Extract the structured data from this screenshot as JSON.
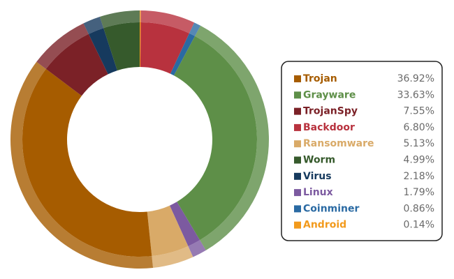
{
  "chart_data": {
    "type": "donut",
    "categories": [
      "Android",
      "Backdoor",
      "Coinminer",
      "Grayware",
      "Linux",
      "Ransomware",
      "Trojan",
      "TrojanSpy",
      "Virus",
      "Worm"
    ],
    "values": [
      0.14,
      6.8,
      0.86,
      33.63,
      1.79,
      5.13,
      36.92,
      7.55,
      2.18,
      4.99
    ],
    "value_labels": [
      "0.14%",
      "6.80%",
      "0.86%",
      "33.63%",
      "1.79%",
      "5.13%",
      "36.92%",
      "7.55%",
      "2.18%",
      "4.99%"
    ],
    "colors": [
      "#f29a1c",
      "#b8323e",
      "#2a6aa3",
      "#5e8f48",
      "#7c5aa0",
      "#d9aa68",
      "#a65c00",
      "#7b2127",
      "#163a5e",
      "#365a2c"
    ],
    "legend_order": [
      6,
      3,
      7,
      1,
      5,
      9,
      8,
      4,
      2,
      0
    ]
  }
}
